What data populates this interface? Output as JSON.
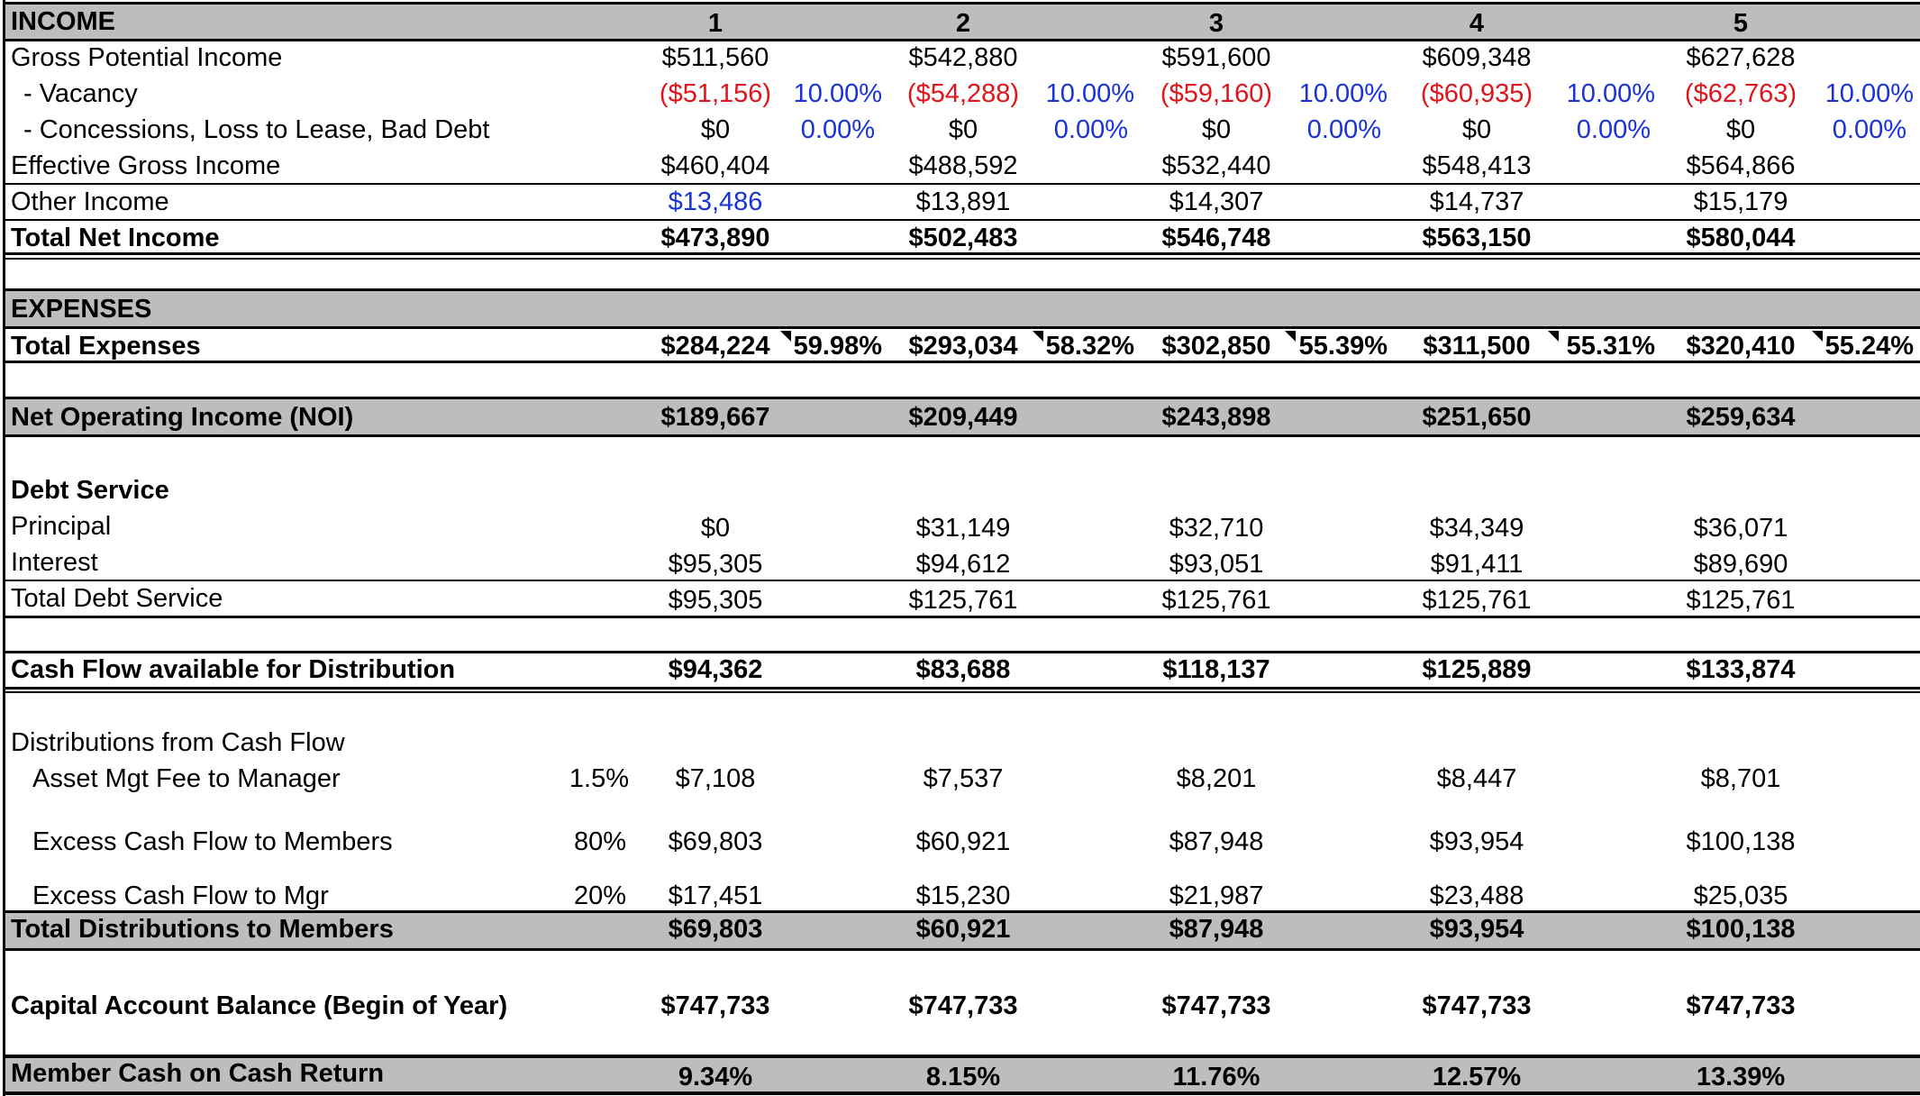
{
  "income": {
    "header": "INCOME",
    "years": [
      "1",
      "2",
      "3",
      "4",
      "5"
    ],
    "rows": [
      {
        "label": "Gross Potential Income",
        "values": [
          "$511,560",
          "$542,880",
          "$591,600",
          "$609,348",
          "$627,628"
        ]
      },
      {
        "label": "- Vacancy",
        "values": [
          "($51,156)",
          "($54,288)",
          "($59,160)",
          "($60,935)",
          "($62,763)"
        ],
        "pcts": [
          "10.00%",
          "10.00%",
          "10.00%",
          "10.00%",
          "10.00%"
        ]
      },
      {
        "label": "- Concessions, Loss to Lease, Bad Debt",
        "values": [
          "$0",
          "$0",
          "$0",
          "$0",
          "$0"
        ],
        "pcts": [
          "0.00%",
          "0.00%",
          "0.00%",
          "0.00%",
          "0.00%"
        ]
      },
      {
        "label": "Effective Gross Income",
        "values": [
          "$460,404",
          "$488,592",
          "$532,440",
          "$548,413",
          "$564,866"
        ]
      },
      {
        "label": "Other Income",
        "values": [
          "$13,486",
          "$13,891",
          "$14,307",
          "$14,737",
          "$15,179"
        ]
      },
      {
        "label": "Total Net Income",
        "values": [
          "$473,890",
          "$502,483",
          "$546,748",
          "$563,150",
          "$580,044"
        ]
      }
    ]
  },
  "expenses": {
    "header": "EXPENSES",
    "total": {
      "label": "Total Expenses",
      "values": [
        "$284,224",
        "$293,034",
        "$302,850",
        "$311,500",
        "$320,410"
      ],
      "pcts": [
        "59.98%",
        "58.32%",
        "55.39%",
        "55.31%",
        "55.24%"
      ]
    }
  },
  "noi": {
    "label": "Net Operating Income (NOI)",
    "values": [
      "$189,667",
      "$209,449",
      "$243,898",
      "$251,650",
      "$259,634"
    ]
  },
  "debt": {
    "header": "Debt Service",
    "rows": [
      {
        "label": "Principal",
        "values": [
          "$0",
          "$31,149",
          "$32,710",
          "$34,349",
          "$36,071"
        ]
      },
      {
        "label": "Interest",
        "values": [
          "$95,305",
          "$94,612",
          "$93,051",
          "$91,411",
          "$89,690"
        ]
      },
      {
        "label": "Total Debt Service",
        "values": [
          "$95,305",
          "$125,761",
          "$125,761",
          "$125,761",
          "$125,761"
        ]
      }
    ]
  },
  "cashflow": {
    "label": "Cash Flow available for Distribution",
    "values": [
      "$94,362",
      "$83,688",
      "$118,137",
      "$125,889",
      "$133,874"
    ]
  },
  "distributions": {
    "header": "Distributions from Cash Flow",
    "rows": [
      {
        "label": "Asset Mgt Fee to Manager",
        "rate": "1.5%",
        "values": [
          "$7,108",
          "$7,537",
          "$8,201",
          "$8,447",
          "$8,701"
        ]
      },
      {
        "label": "Excess Cash Flow to Members",
        "rate": "80%",
        "values": [
          "$69,803",
          "$60,921",
          "$87,948",
          "$93,954",
          "$100,138"
        ]
      },
      {
        "label": "Excess Cash Flow to Mgr",
        "rate": "20%",
        "values": [
          "$17,451",
          "$15,230",
          "$21,987",
          "$23,488",
          "$25,035"
        ]
      }
    ],
    "total": {
      "label": "Total Distributions to Members",
      "values": [
        "$69,803",
        "$60,921",
        "$87,948",
        "$93,954",
        "$100,138"
      ]
    }
  },
  "capital": {
    "label": "Capital Account Balance (Begin of Year)",
    "values": [
      "$747,733",
      "$747,733",
      "$747,733",
      "$747,733",
      "$747,733"
    ]
  },
  "coc": {
    "label": "Member Cash on Cash Return",
    "values": [
      "9.34%",
      "8.15%",
      "11.76%",
      "12.57%",
      "13.39%"
    ]
  },
  "colors": {
    "band": "#bdbdbd",
    "negative": "#e0141b",
    "input_blue": "#1a33d6"
  }
}
